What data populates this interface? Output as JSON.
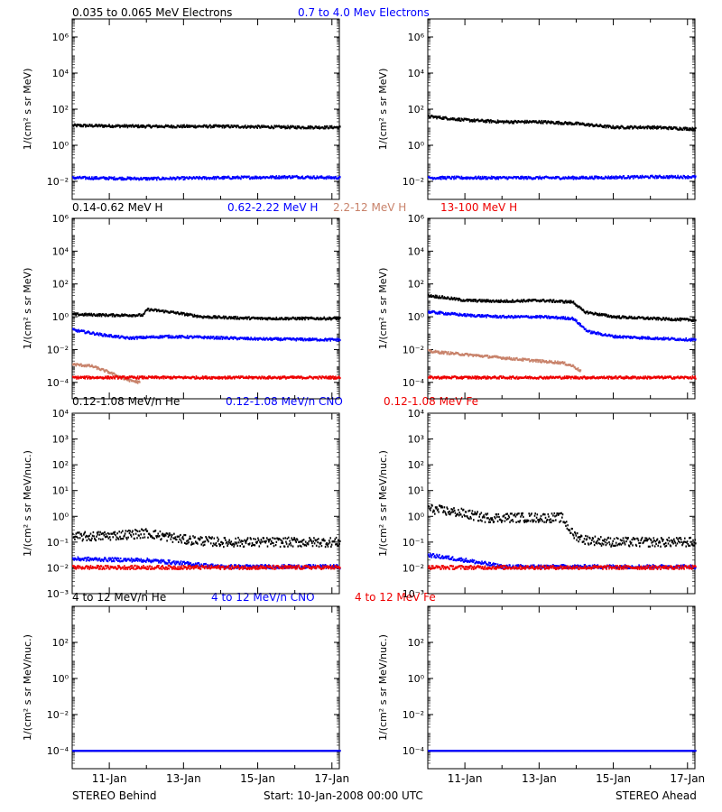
{
  "chart_data": {
    "type": "scatter",
    "x_ticks": [
      "11-Jan",
      "13-Jan",
      "15-Jan",
      "17-Jan"
    ],
    "xlim_days": [
      10.0,
      17.2
    ],
    "footer": {
      "left": "STEREO Behind",
      "center": "Start: 10-Jan-2008 00:00 UTC",
      "right": "STEREO Ahead"
    },
    "rows": [
      {
        "ylabel": "1/(cm² s sr MeV)",
        "ylim_log10": [
          -3,
          7
        ],
        "y_ticks": [
          -2,
          0,
          2,
          4,
          6
        ],
        "legend": [
          {
            "text": "0.035 to 0.065 MeV Electrons",
            "color": "#000000"
          },
          {
            "text": "0.7 to 4.0 Mev Electrons",
            "color": "#0000ff"
          }
        ],
        "behind": [
          {
            "color": "#000000",
            "x": [
              10,
              12,
              14,
              16,
              17.2
            ],
            "log10_y": [
              1.1,
              1.05,
              1.05,
              1.0,
              1.0
            ]
          },
          {
            "color": "#0000ff",
            "x": [
              10,
              12,
              14,
              16,
              17.2
            ],
            "log10_y": [
              -1.8,
              -1.85,
              -1.8,
              -1.75,
              -1.8
            ]
          }
        ],
        "ahead": [
          {
            "color": "#000000",
            "x": [
              10,
              11,
              12,
              13,
              14,
              15,
              16,
              17.2
            ],
            "log10_y": [
              1.6,
              1.4,
              1.3,
              1.3,
              1.2,
              1.0,
              1.0,
              0.9
            ]
          },
          {
            "color": "#0000ff",
            "x": [
              10,
              12,
              14,
              16,
              17.2
            ],
            "log10_y": [
              -1.8,
              -1.8,
              -1.8,
              -1.75,
              -1.75
            ]
          }
        ]
      },
      {
        "ylabel": "1/(cm² s sr MeV)",
        "ylim_log10": [
          -5,
          6
        ],
        "y_ticks": [
          -4,
          -2,
          0,
          2,
          4,
          6
        ],
        "legend": [
          {
            "text": "0.14-0.62 MeV H",
            "color": "#000000"
          },
          {
            "text": "0.62-2.22 MeV H",
            "color": "#0000ff"
          },
          {
            "text": "2.2-12 MeV H",
            "color": "#c8826a"
          },
          {
            "text": "13-100 MeV H",
            "color": "#ee0000"
          }
        ],
        "behind": [
          {
            "color": "#000000",
            "x": [
              10,
              11,
              11.9,
              12.0,
              12.6,
              13.5,
              15,
              16,
              17.2
            ],
            "log10_y": [
              0.15,
              0.1,
              0.1,
              0.45,
              0.3,
              0.0,
              -0.1,
              -0.1,
              -0.1
            ]
          },
          {
            "color": "#0000ff",
            "x": [
              10,
              10.8,
              11.5,
              12.5,
              13.5,
              15,
              17.2
            ],
            "log10_y": [
              -0.8,
              -1.1,
              -1.3,
              -1.2,
              -1.25,
              -1.35,
              -1.4
            ]
          },
          {
            "color": "#c8826a",
            "x": [
              10,
              10.5,
              11.0,
              11.4,
              11.8
            ],
            "log10_y": [
              -2.9,
              -3.0,
              -3.4,
              -3.8,
              -4.0
            ]
          },
          {
            "color": "#ee0000",
            "x": [
              10,
              12,
              14,
              16,
              17.2
            ],
            "log10_y": [
              -3.7,
              -3.7,
              -3.7,
              -3.7,
              -3.7
            ]
          }
        ],
        "ahead": [
          {
            "color": "#000000",
            "x": [
              10,
              11,
              12,
              13,
              13.9,
              14.2,
              15,
              16,
              17.2
            ],
            "log10_y": [
              1.3,
              1.0,
              0.95,
              1.0,
              0.9,
              0.3,
              0.0,
              -0.1,
              -0.2
            ]
          },
          {
            "color": "#0000ff",
            "x": [
              10,
              11,
              12,
              13,
              13.9,
              14.3,
              15,
              16,
              17.2
            ],
            "log10_y": [
              0.3,
              0.1,
              0.0,
              0.0,
              -0.1,
              -0.9,
              -1.2,
              -1.3,
              -1.4
            ]
          },
          {
            "color": "#c8826a",
            "x": [
              10,
              11,
              12,
              13,
              13.6,
              13.9,
              14.1
            ],
            "log10_y": [
              -2.1,
              -2.3,
              -2.5,
              -2.7,
              -2.8,
              -3.0,
              -3.3
            ]
          },
          {
            "color": "#ee0000",
            "x": [
              10,
              12,
              14,
              16,
              17.2
            ],
            "log10_y": [
              -3.7,
              -3.7,
              -3.7,
              -3.7,
              -3.7
            ]
          }
        ]
      },
      {
        "ylabel": "1/(cm² s sr MeV/nuc.)",
        "ylim_log10": [
          -3,
          4
        ],
        "y_ticks": [
          -3,
          -2,
          -1,
          0,
          1,
          2,
          3,
          4
        ],
        "legend": [
          {
            "text": "0.12-1.08 MeV/n He",
            "color": "#000000"
          },
          {
            "text": "0.12-1.08 MeV/n CNO",
            "color": "#0000ff"
          },
          {
            "text": "0.12-1.08 MeV Fe",
            "color": "#ee0000"
          }
        ],
        "behind": [
          {
            "color": "#000000",
            "x": [
              10,
              11,
              12,
              13,
              14,
              15,
              16,
              17.2
            ],
            "log10_y": [
              -0.8,
              -0.75,
              -0.65,
              -0.9,
              -1.0,
              -1.0,
              -1.0,
              -1.0
            ]
          },
          {
            "color": "#0000ff",
            "x": [
              10,
              12,
              14,
              16,
              17.2
            ],
            "log10_y": [
              -1.65,
              -1.7,
              -1.95,
              -1.95,
              -1.95
            ]
          },
          {
            "color": "#ee0000",
            "x": [
              10,
              12,
              14,
              16,
              17.2
            ],
            "log10_y": [
              -1.98,
              -1.98,
              -1.98,
              -1.98,
              -1.98
            ]
          }
        ],
        "ahead": [
          {
            "color": "#000000",
            "x": [
              10,
              10.8,
              11.5,
              12.5,
              13.6,
              13.9,
              14.2,
              15,
              17.2
            ],
            "log10_y": [
              0.3,
              0.15,
              -0.05,
              -0.05,
              -0.05,
              -0.7,
              -0.9,
              -1.0,
              -1.0
            ]
          },
          {
            "color": "#0000ff",
            "x": [
              10,
              11,
              12,
              14,
              16,
              17.2
            ],
            "log10_y": [
              -1.5,
              -1.7,
              -1.95,
              -1.95,
              -1.95,
              -1.95
            ]
          },
          {
            "color": "#ee0000",
            "x": [
              10,
              12,
              14,
              16,
              17.2
            ],
            "log10_y": [
              -1.98,
              -1.98,
              -1.98,
              -1.98,
              -1.98
            ]
          }
        ]
      },
      {
        "ylabel": "1/(cm² s sr MeV/nuc.)",
        "ylim_log10": [
          -5,
          4
        ],
        "y_ticks": [
          -4,
          -2,
          0,
          2
        ],
        "legend": [
          {
            "text": "4 to 12 MeV/n He",
            "color": "#000000"
          },
          {
            "text": "4 to 12 MeV/n CNO",
            "color": "#0000ff"
          },
          {
            "text": "4 to 12 MeV Fe",
            "color": "#ee0000"
          }
        ],
        "behind": [
          {
            "color": "#000000",
            "x": [
              10,
              12,
              14,
              16,
              17.2
            ],
            "log10_y": [
              -4.0,
              -4.0,
              -4.0,
              -4.0,
              -4.0
            ]
          },
          {
            "color": "#0000ff",
            "x": [
              10,
              12,
              14,
              16,
              17.2
            ],
            "log10_y": [
              -4.0,
              -4.0,
              -4.0,
              -4.0,
              -4.0
            ]
          }
        ],
        "ahead": [
          {
            "color": "#000000",
            "x": [
              10,
              12,
              14,
              16,
              17.2
            ],
            "log10_y": [
              -4.0,
              -4.0,
              -4.0,
              -4.0,
              -4.0
            ]
          },
          {
            "color": "#0000ff",
            "x": [
              10,
              12,
              14,
              16,
              17.2
            ],
            "log10_y": [
              -4.0,
              -4.0,
              -4.0,
              -4.0,
              -4.0
            ]
          }
        ]
      }
    ]
  }
}
